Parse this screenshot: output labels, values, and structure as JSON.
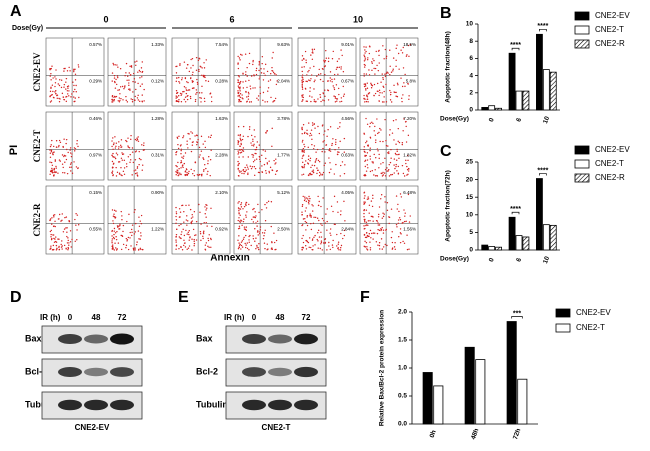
{
  "panel_a": {
    "letter": "A",
    "dose_label": "Dose(Gy)",
    "doses": [
      "0",
      "6",
      "10"
    ],
    "y_label": "PI",
    "x_label": "Annexin",
    "rows": [
      {
        "label": "CNE2-EV",
        "plots": [
          [
            "0.57%",
            "0.29%"
          ],
          [
            "1.33%",
            "0.12%"
          ],
          [
            "7.54%",
            "0.28%"
          ],
          [
            "9.63%",
            "2.04%"
          ],
          [
            "9.01%",
            "0.67%"
          ],
          [
            "18.5%",
            "5.8%"
          ]
        ]
      },
      {
        "label": "CNE2-T",
        "plots": [
          [
            "0.46%",
            "0.97%"
          ],
          [
            "1.28%",
            "0.31%"
          ],
          [
            "1.63%",
            "2.28%"
          ],
          [
            "3.78%",
            "1.77%"
          ],
          [
            "4.56%",
            "0.63%"
          ],
          [
            "7.20%",
            "1.82%"
          ]
        ]
      },
      {
        "label": "CNE2-R",
        "plots": [
          [
            "0.15%",
            "0.55%"
          ],
          [
            "0.90%",
            "1.22%"
          ],
          [
            "2.10%",
            "0.92%"
          ],
          [
            "5.12%",
            "2.50%"
          ],
          [
            "4.05%",
            "2.84%"
          ],
          [
            "6.48%",
            "1.56%"
          ]
        ]
      }
    ]
  },
  "blots": [
    {
      "letter": "D",
      "ir_label": "IR (h)",
      "times": [
        "0",
        "48",
        "72"
      ],
      "proteins": [
        "Bax",
        "Bcl-2",
        "Tubulin"
      ],
      "caption": "CNE2-EV"
    },
    {
      "letter": "E",
      "ir_label": "IR (h)",
      "times": [
        "0",
        "48",
        "72"
      ],
      "proteins": [
        "Bax",
        "Bcl-2",
        "Tubulin"
      ],
      "caption": "CNE2-T"
    }
  ],
  "chart_data": [
    {
      "type": "bar",
      "label": "B",
      "y_label": "Apoptotic fraction(48h)",
      "x_label": "Dose(Gy)",
      "categories": [
        "0",
        "6",
        "10"
      ],
      "series": [
        {
          "name": "CNE2-EV",
          "color": "#000000",
          "values": [
            0.3,
            6.6,
            8.8
          ]
        },
        {
          "name": "CNE2-T",
          "color": "#ffffff",
          "values": [
            0.5,
            2.2,
            4.7
          ]
        },
        {
          "name": "CNE2-R",
          "color": "#ffffff",
          "hatch": true,
          "values": [
            0.2,
            2.2,
            4.4
          ]
        }
      ],
      "ylim": [
        0,
        10
      ],
      "yticks": [
        0,
        2,
        4,
        6,
        8,
        10
      ],
      "annotations": [
        "****",
        "****"
      ]
    },
    {
      "type": "bar",
      "label": "C",
      "y_label": "Apoptotic fraction(72h)",
      "x_label": "Dose(Gy)",
      "categories": [
        "0",
        "6",
        "10"
      ],
      "series": [
        {
          "name": "CNE2-EV",
          "color": "#000000",
          "values": [
            1.4,
            9.3,
            20.3
          ]
        },
        {
          "name": "CNE2-T",
          "color": "#ffffff",
          "values": [
            1.0,
            4.1,
            7.2
          ]
        },
        {
          "name": "CNE2-R",
          "color": "#ffffff",
          "hatch": true,
          "values": [
            0.8,
            3.7,
            7.0
          ]
        }
      ],
      "ylim": [
        0,
        25
      ],
      "yticks": [
        0,
        5,
        10,
        15,
        20,
        25
      ],
      "annotations": [
        "****",
        "****"
      ]
    },
    {
      "type": "bar",
      "label": "F",
      "y_label": "Relative Bax/Bcl-2 protein expression",
      "categories": [
        "0h",
        "48h",
        "72h"
      ],
      "series": [
        {
          "name": "CNE2-EV",
          "color": "#000000",
          "values": [
            0.92,
            1.37,
            1.83
          ]
        },
        {
          "name": "CNE2-T",
          "color": "#ffffff",
          "values": [
            0.68,
            1.15,
            0.8
          ]
        }
      ],
      "ylim": [
        0,
        2
      ],
      "yticks": [
        {
          "value": 0,
          "label": "0.0"
        },
        {
          "value": 0.5,
          "label": "0.5"
        },
        {
          "value": 1,
          "label": "1.0"
        },
        {
          "value": 1.5,
          "label": "1.5"
        },
        {
          "value": 2,
          "label": "2.0"
        }
      ],
      "annotations": [
        "***"
      ]
    }
  ]
}
